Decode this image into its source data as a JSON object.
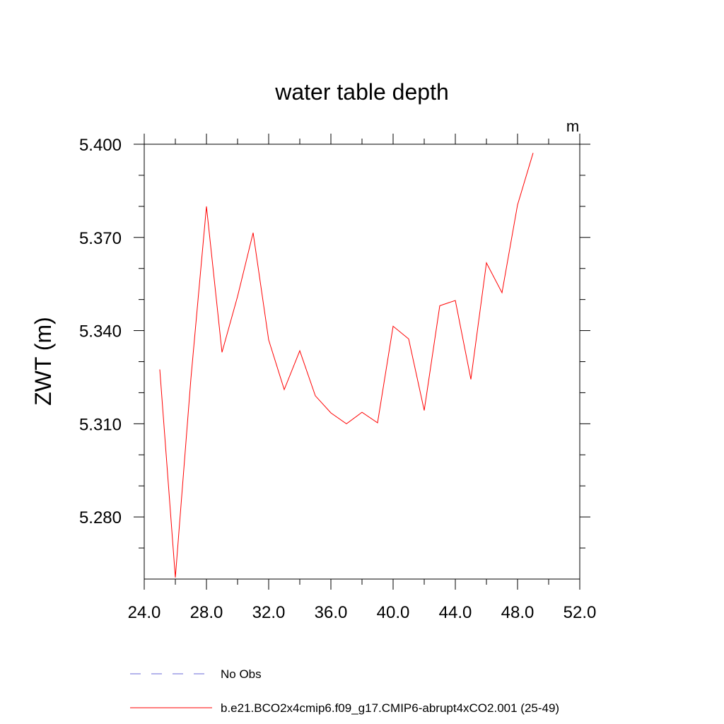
{
  "chart_data": {
    "type": "line",
    "title": "water table depth",
    "units": "m",
    "xlabel": "",
    "ylabel": "ZWT  (m)",
    "xlim": [
      24.0,
      52.0
    ],
    "ylim": [
      5.26,
      5.4
    ],
    "x_ticks": [
      24.0,
      28.0,
      32.0,
      36.0,
      40.0,
      44.0,
      48.0,
      52.0
    ],
    "x_tick_labels": [
      "24.0",
      "28.0",
      "32.0",
      "36.0",
      "40.0",
      "44.0",
      "48.0",
      "52.0"
    ],
    "x_minor_ticks": [
      26.0,
      30.0,
      34.0,
      38.0,
      42.0,
      46.0,
      50.0
    ],
    "y_ticks": [
      5.28,
      5.31,
      5.34,
      5.37,
      5.4
    ],
    "y_tick_labels": [
      "5.280",
      "5.310",
      "5.340",
      "5.370",
      "5.400"
    ],
    "y_minor_ticks": [
      5.27,
      5.29,
      5.3,
      5.32,
      5.33,
      5.35,
      5.36,
      5.38,
      5.39
    ],
    "grid": false,
    "legend_position": "bottom",
    "series": [
      {
        "name": "No Obs",
        "color": "#6a6ad8",
        "dash": "dashed",
        "x": [],
        "y": []
      },
      {
        "name": "b.e21.BCO2x4cmip6.f09_g17.CMIP6-abrupt4xCO2.001 (25-49)",
        "color": "#ff0000",
        "dash": "solid",
        "x": [
          25,
          26,
          27,
          28,
          29,
          30,
          31,
          32,
          33,
          34,
          35,
          36,
          37,
          38,
          39,
          40,
          41,
          42,
          43,
          44,
          45,
          46,
          47,
          48,
          49
        ],
        "y": [
          5.3275,
          5.2605,
          5.3245,
          5.38,
          5.333,
          5.351,
          5.3715,
          5.337,
          5.321,
          5.3335,
          5.319,
          5.3135,
          5.31,
          5.3137,
          5.3103,
          5.3414,
          5.3373,
          5.3143,
          5.348,
          5.3497,
          5.3243,
          5.3618,
          5.3522,
          5.3805,
          5.3972
        ]
      }
    ]
  }
}
